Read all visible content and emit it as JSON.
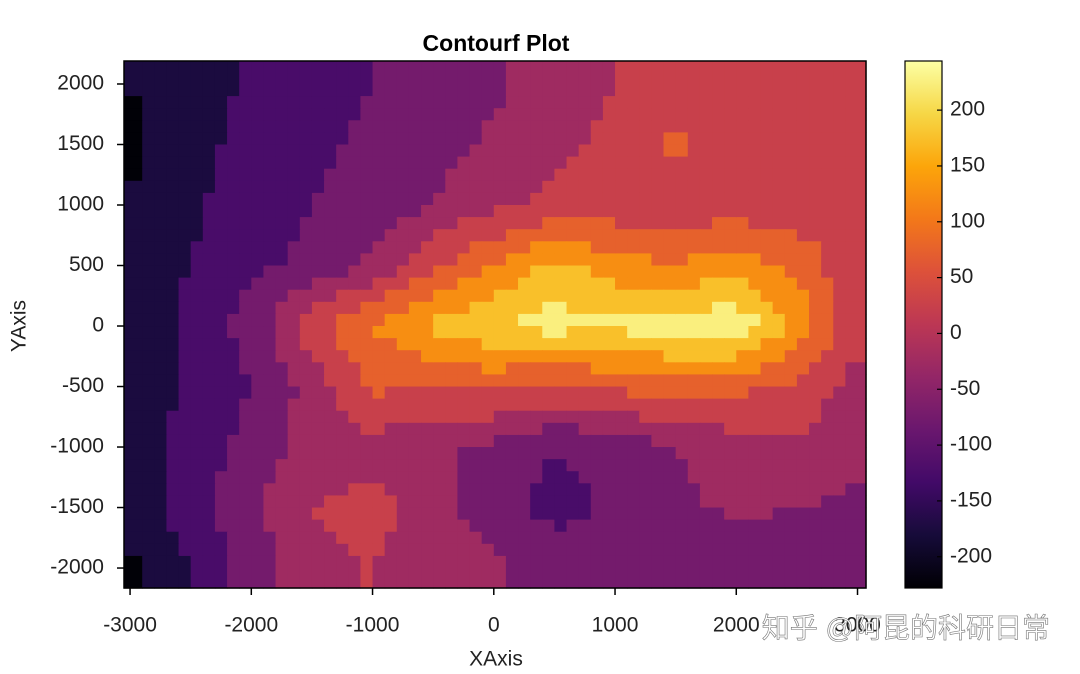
{
  "chart_data": {
    "type": "contourf",
    "title": "Contourf Plot",
    "x_label": "XAxis",
    "y_label": "YAxis",
    "x": [
      -3000,
      -2500,
      -2000,
      -1500,
      -1000,
      -500,
      0,
      500,
      1000,
      1500,
      2000,
      2500,
      3000
    ],
    "y": [
      2000,
      1500,
      1000,
      500,
      0,
      -500,
      -1000,
      -1500,
      -2000
    ],
    "z": [
      [
        -200,
        -180,
        -140,
        -120,
        -100,
        -80,
        -60,
        -30,
        0,
        10,
        20,
        40,
        50
      ],
      [
        -210,
        -170,
        -130,
        -110,
        -90,
        -70,
        -40,
        -10,
        10,
        60,
        20,
        20,
        50
      ],
      [
        -200,
        -160,
        -120,
        -100,
        -80,
        -50,
        -10,
        10,
        20,
        20,
        20,
        20,
        50
      ],
      [
        -190,
        -150,
        -110,
        -90,
        -40,
        40,
        100,
        170,
        120,
        100,
        130,
        80,
        10
      ],
      [
        -200,
        -130,
        -80,
        30,
        100,
        160,
        200,
        220,
        210,
        230,
        240,
        140,
        10
      ],
      [
        -190,
        -140,
        -100,
        -30,
        60,
        50,
        60,
        40,
        60,
        80,
        60,
        40,
        -20
      ],
      [
        -180,
        -130,
        -80,
        -30,
        -20,
        -40,
        -60,
        -100,
        -80,
        -50,
        -20,
        -10,
        -40
      ],
      [
        -190,
        -120,
        -60,
        0,
        20,
        -30,
        -80,
        -120,
        -90,
        -60,
        -40,
        -50,
        -60
      ],
      [
        -210,
        -150,
        -80,
        -20,
        0,
        -20,
        -40,
        -60,
        -80,
        -90,
        -90,
        -80,
        -80
      ]
    ],
    "levels": [
      -200,
      -150,
      -100,
      -50,
      0,
      50,
      100,
      150,
      200
    ],
    "colormap": "inferno",
    "xlim": [
      -3050,
      3070
    ],
    "ylim": [
      -2165,
      2190
    ],
    "xticks": [
      -3000,
      -2000,
      -1000,
      0,
      1000,
      2000,
      3000
    ],
    "yticks": [
      -2000,
      -1500,
      -1000,
      -500,
      0,
      500,
      1000,
      1500,
      2000
    ],
    "clim": [
      -228,
      244
    ],
    "cticks": [
      -200,
      -150,
      -100,
      -50,
      0,
      50,
      100,
      150,
      200
    ],
    "watermark": "知乎 @阿昆的科研日常"
  }
}
